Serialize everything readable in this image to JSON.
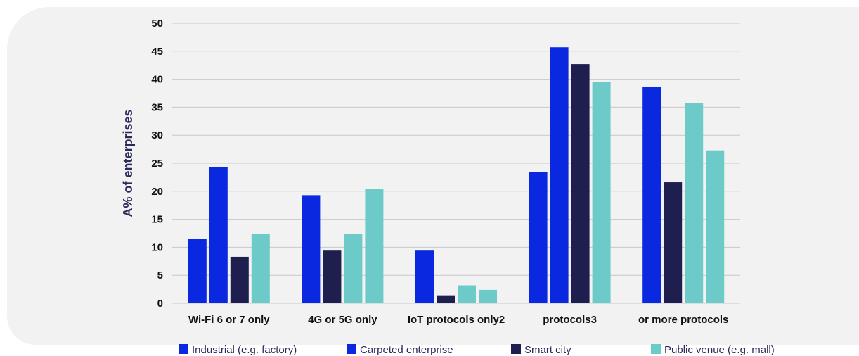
{
  "chart_data": {
    "type": "bar",
    "title": "",
    "xlabel": "",
    "ylabel": "A% of enterprises",
    "ylim": [
      0,
      50
    ],
    "yticks": [
      0,
      5,
      10,
      15,
      20,
      25,
      30,
      35,
      40,
      45,
      50
    ],
    "grid": true,
    "legend_position": "bottom",
    "categories": [
      "Wi-Fi 6 or 7 only",
      "4G or 5G only",
      "IoT protocols only2",
      "protocols3",
      "or more protocols"
    ],
    "series": [
      {
        "name": "Industrial (e.g. factory)",
        "color": "#0a28e0",
        "values": [
          11.5,
          0,
          0,
          23.4,
          0
        ]
      },
      {
        "name": "Carpeted enterprise",
        "color": "#0a28e0",
        "values": [
          24.3,
          19.3,
          9.4,
          45.7,
          38.6
        ]
      },
      {
        "name": "Smart city",
        "color": "#1e1e4f",
        "values": [
          8.3,
          9.4,
          1.3,
          42.7,
          21.6
        ]
      },
      {
        "name": "Public venue (e.g. mall)",
        "color": "#6ccbc8",
        "values": [
          12.4,
          12.4,
          3.2,
          39.5,
          35.7
        ]
      },
      {
        "name": "",
        "color": "#6ccbc8",
        "values": [
          0,
          20.4,
          2.4,
          0,
          27.3
        ]
      }
    ]
  }
}
